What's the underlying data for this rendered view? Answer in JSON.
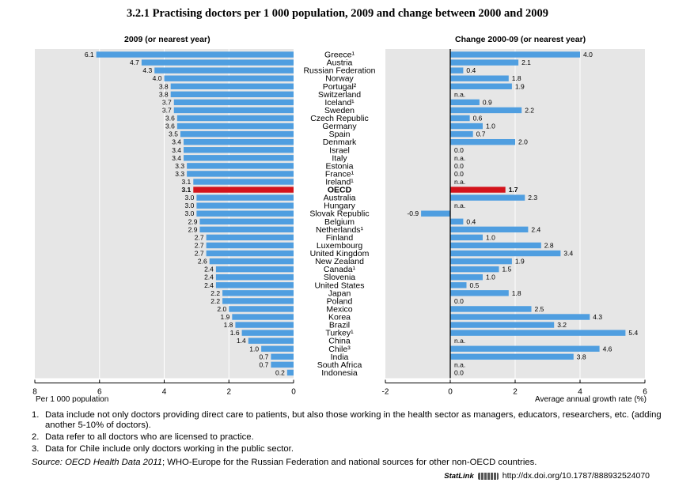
{
  "title": "3.2.1  Practising doctors per 1 000 population, 2009 and change between 2000 and 2009",
  "colors": {
    "bar": "#4f9ee0",
    "highlight": "#d3131b",
    "panel_bg": "#e6e6e6",
    "grid": "#ffffff"
  },
  "chart_data": [
    {
      "type": "bar",
      "orientation": "horizontal",
      "title": "2009 (or nearest year)",
      "xlabel": "Per 1 000 population",
      "xlim": [
        0,
        8
      ],
      "x_direction": "reversed",
      "xticks": [
        "8",
        "6",
        "4",
        "2",
        "0"
      ],
      "highlight_category": "OECD",
      "categories": [
        "Greece¹",
        "Austria",
        "Russian Federation",
        "Norway",
        "Portugal²",
        "Switzerland",
        "Iceland¹",
        "Sweden",
        "Czech Republic",
        "Germany",
        "Spain",
        "Denmark",
        "Israel",
        "Italy",
        "Estonia",
        "France¹",
        "Ireland¹",
        "OECD",
        "Australia",
        "Hungary",
        "Slovak Republic",
        "Belgium",
        "Netherlands¹",
        "Finland",
        "Luxembourg",
        "United Kingdom",
        "New Zealand",
        "Canada¹",
        "Slovenia",
        "United States",
        "Japan",
        "Poland",
        "Mexico",
        "Korea",
        "Brazil",
        "Turkey¹",
        "China",
        "Chile³",
        "India",
        "South Africa",
        "Indonesia"
      ],
      "values": [
        6.1,
        4.7,
        4.3,
        4.0,
        3.8,
        3.8,
        3.7,
        3.7,
        3.6,
        3.6,
        3.5,
        3.4,
        3.4,
        3.4,
        3.3,
        3.3,
        3.1,
        3.1,
        3.0,
        3.0,
        3.0,
        2.9,
        2.9,
        2.7,
        2.7,
        2.7,
        2.6,
        2.4,
        2.4,
        2.4,
        2.2,
        2.2,
        2.0,
        1.9,
        1.8,
        1.6,
        1.4,
        1.0,
        0.7,
        0.7,
        0.2
      ],
      "value_labels": [
        "6.1",
        "4.7",
        "4.3",
        "4.0",
        "3.8",
        "3.8",
        "3.7",
        "3.7",
        "3.6",
        "3.6",
        "3.5",
        "3.4",
        "3.4",
        "3.4",
        "3.3",
        "3.3",
        "3.1",
        "3.1",
        "3.0",
        "3.0",
        "3.0",
        "2.9",
        "2.9",
        "2.7",
        "2.7",
        "2.7",
        "2.6",
        "2.4",
        "2.4",
        "2.4",
        "2.2",
        "2.2",
        "2.0",
        "1.9",
        "1.8",
        "1.6",
        "1.4",
        "1.0",
        "0.7",
        "0.7",
        "0.2"
      ]
    },
    {
      "type": "bar",
      "orientation": "horizontal",
      "title": "Change 2000-09 (or nearest year)",
      "xlabel": "Average annual growth rate (%)",
      "xlim": [
        -2,
        6
      ],
      "xticks": [
        "-2",
        "0",
        "2",
        "4",
        "6"
      ],
      "highlight_category": "OECD",
      "values": [
        4.0,
        2.1,
        0.4,
        1.8,
        1.9,
        null,
        0.9,
        2.2,
        0.6,
        1.0,
        0.7,
        2.0,
        0.0,
        null,
        0.0,
        0.0,
        null,
        1.7,
        2.3,
        null,
        -0.9,
        0.4,
        2.4,
        1.0,
        2.8,
        3.4,
        1.9,
        1.5,
        1.0,
        0.5,
        1.8,
        0.0,
        2.5,
        4.3,
        3.2,
        5.4,
        null,
        4.6,
        3.8,
        null,
        0.0
      ],
      "value_labels": [
        "4.0",
        "2.1",
        "0.4",
        "1.8",
        "1.9",
        "n.a.",
        "0.9",
        "2.2",
        "0.6",
        "1.0",
        "0.7",
        "2.0",
        "0.0",
        "n.a.",
        "0.0",
        "0.0",
        "n.a.",
        "1.7",
        "2.3",
        "n.a.",
        "-0.9",
        "0.4",
        "2.4",
        "1.0",
        "2.8",
        "3.4",
        "1.9",
        "1.5",
        "1.0",
        "0.5",
        "1.8",
        "0.0",
        "2.5",
        "4.3",
        "3.2",
        "5.4",
        "n.a.",
        "4.6",
        "3.8",
        "n.a.",
        "0.0"
      ]
    }
  ],
  "notes": [
    {
      "num": "1.",
      "text": "Data include not only doctors providing direct care to patients, but also those working in the health sector as managers, educators, researchers, etc. (adding another 5-10% of doctors)."
    },
    {
      "num": "2.",
      "text": "Data refer to all doctors who are licensed to practice."
    },
    {
      "num": "3.",
      "text": "Data for Chile include only doctors working in the public sector."
    }
  ],
  "source": {
    "lead": "Source:",
    "db": "OECD Health Data 2011",
    "rest": "; WHO-Europe for the Russian Federation and national sources for other non-OECD countries."
  },
  "statlink": {
    "brand": "StatLink",
    "url": "http://dx.doi.org/10.1787/888932524070"
  }
}
